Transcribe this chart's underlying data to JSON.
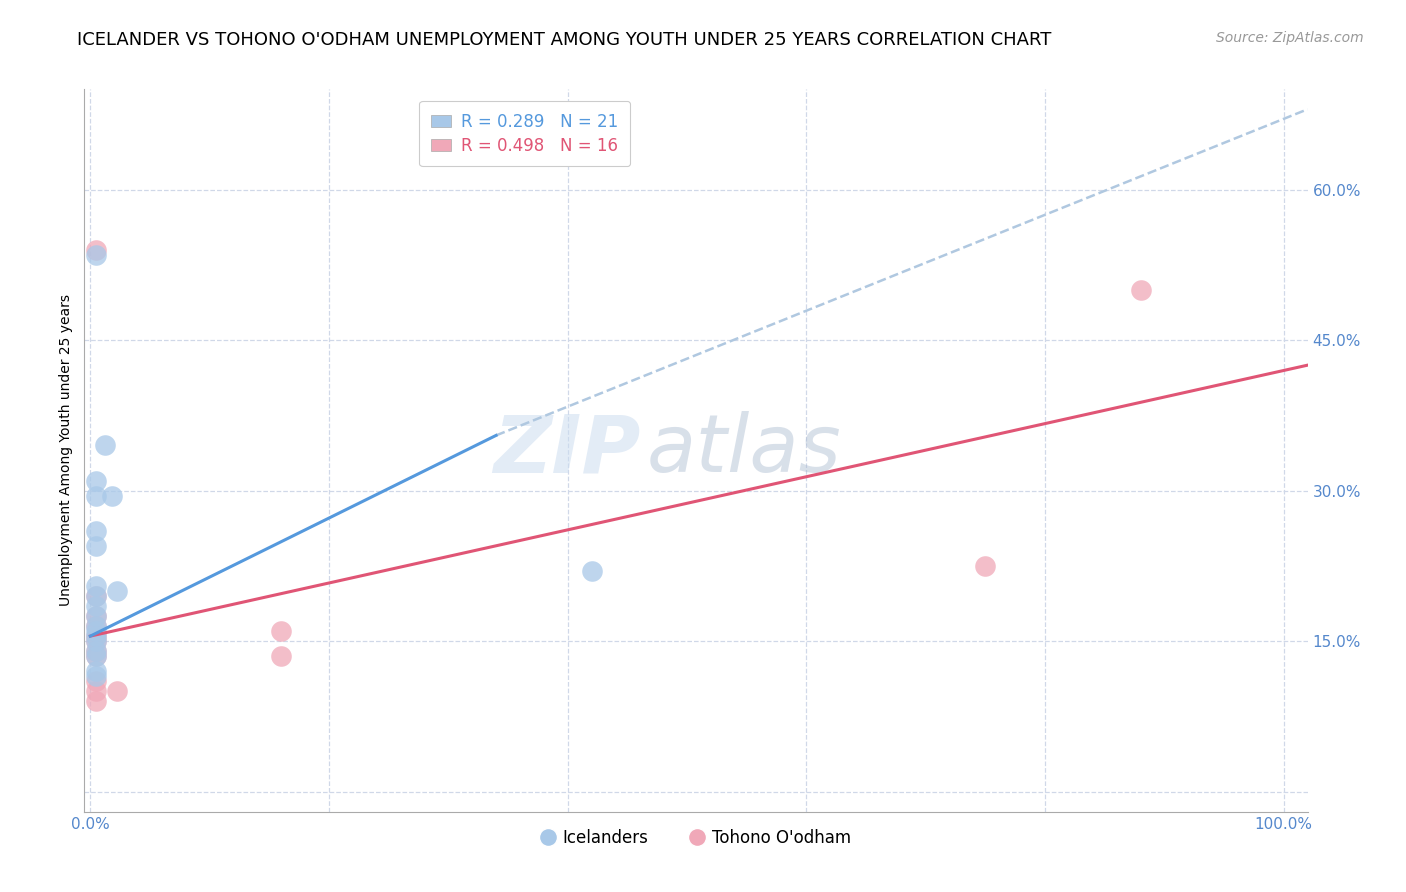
{
  "title": "ICELANDER VS TOHONO O'ODHAM UNEMPLOYMENT AMONG YOUTH UNDER 25 YEARS CORRELATION CHART",
  "source": "Source: ZipAtlas.com",
  "ylabel": "Unemployment Among Youth under 25 years",
  "xlabel_ticks": [
    0.0,
    0.2,
    0.4,
    0.6,
    0.8,
    1.0
  ],
  "xlabel_labels": [
    "0.0%",
    "",
    "",
    "",
    "",
    "100.0%"
  ],
  "ylim": [
    -0.02,
    0.7
  ],
  "xlim": [
    -0.005,
    1.02
  ],
  "yticks": [
    0.0,
    0.15,
    0.3,
    0.45,
    0.6
  ],
  "ytick_labels": [
    "",
    "15.0%",
    "30.0%",
    "45.0%",
    "60.0%"
  ],
  "legend_label_blue": "Icelanders",
  "legend_label_pink": "Tohono O'odham",
  "blue_color": "#a8c8e8",
  "pink_color": "#f0a8b8",
  "trend_blue_color": "#5599dd",
  "trend_pink_color": "#e05575",
  "trend_gray_color": "#b0c8e0",
  "blue_points": [
    [
      0.005,
      0.535
    ],
    [
      0.012,
      0.345
    ],
    [
      0.005,
      0.295
    ],
    [
      0.005,
      0.31
    ],
    [
      0.018,
      0.295
    ],
    [
      0.005,
      0.26
    ],
    [
      0.005,
      0.245
    ],
    [
      0.005,
      0.205
    ],
    [
      0.022,
      0.2
    ],
    [
      0.005,
      0.195
    ],
    [
      0.005,
      0.185
    ],
    [
      0.005,
      0.175
    ],
    [
      0.005,
      0.165
    ],
    [
      0.005,
      0.16
    ],
    [
      0.005,
      0.155
    ],
    [
      0.005,
      0.15
    ],
    [
      0.005,
      0.14
    ],
    [
      0.005,
      0.135
    ],
    [
      0.005,
      0.12
    ],
    [
      0.005,
      0.115
    ],
    [
      0.42,
      0.22
    ]
  ],
  "pink_points": [
    [
      0.005,
      0.54
    ],
    [
      0.005,
      0.195
    ],
    [
      0.005,
      0.175
    ],
    [
      0.005,
      0.165
    ],
    [
      0.005,
      0.155
    ],
    [
      0.005,
      0.15
    ],
    [
      0.005,
      0.14
    ],
    [
      0.005,
      0.135
    ],
    [
      0.005,
      0.11
    ],
    [
      0.005,
      0.1
    ],
    [
      0.005,
      0.09
    ],
    [
      0.022,
      0.1
    ],
    [
      0.16,
      0.16
    ],
    [
      0.16,
      0.135
    ],
    [
      0.75,
      0.225
    ],
    [
      0.88,
      0.5
    ]
  ],
  "blue_trend_solid": [
    0.0,
    0.34,
    0.155,
    0.355
  ],
  "blue_trend_dashed": [
    0.34,
    1.02,
    0.355,
    0.68
  ],
  "pink_trend": [
    0.0,
    1.02,
    0.155,
    0.425
  ],
  "watermark_zip": "ZIP",
  "watermark_atlas": "atlas",
  "background_color": "#ffffff",
  "grid_color": "#d0d8e8",
  "tick_color": "#5588cc",
  "title_fontsize": 13,
  "label_fontsize": 10,
  "tick_fontsize": 11,
  "source_fontsize": 10
}
